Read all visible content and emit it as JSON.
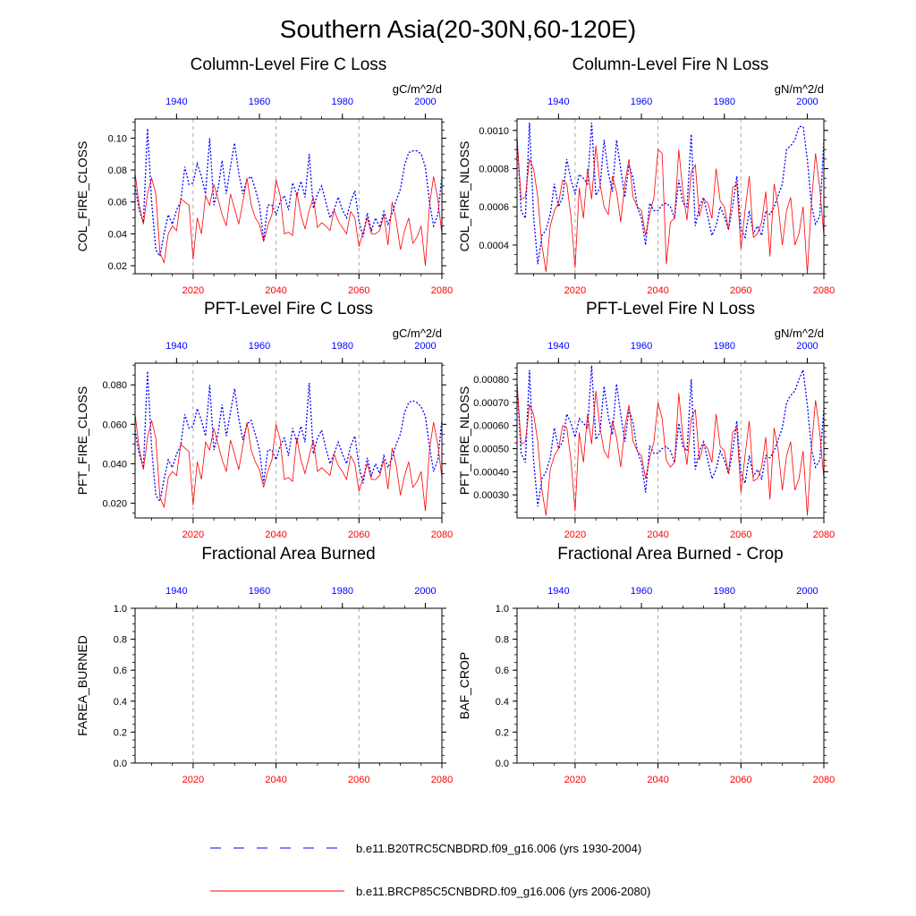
{
  "title": "Southern Asia(20-30N,60-120E)",
  "colors": {
    "series_a": "#0000ff",
    "series_b": "#ff0000",
    "grid": "#aaaaaa"
  },
  "legend": {
    "placement": "bottom-center",
    "items": [
      {
        "label": "b.e11.B20TRC5CNBDRD.f09_g16.006 (yrs 1930-2004)",
        "color": "#0000ff",
        "style": "dashed"
      },
      {
        "label": "b.e11.BRCP85C5CNBDRD.f09_g16.006 (yrs 2006-2080)",
        "color": "#ff0000",
        "style": "solid"
      }
    ]
  },
  "chart_data": [
    {
      "type": "line",
      "title": "Column-Level Fire C Loss",
      "units": "gC/m^2/d",
      "ylabel": "COL_FIRE_CLOSS",
      "ylim": [
        0.015,
        0.112
      ],
      "yticks": [
        "0.02",
        "0.04",
        "0.06",
        "0.08",
        "0.10"
      ],
      "ytick_values": [
        0.02,
        0.04,
        0.06,
        0.08,
        0.1
      ],
      "x_bottom": {
        "label": "",
        "range": [
          2006,
          2080
        ],
        "ticks": [
          2020,
          2040,
          2060,
          2080
        ]
      },
      "x_top": {
        "label": "",
        "range": [
          1930,
          2004
        ],
        "ticks": [
          1940,
          1960,
          1980,
          2000
        ]
      },
      "grid_x": [
        2020,
        2040,
        2060
      ],
      "series": [
        {
          "values": [
            0.07,
            0.055,
            0.047,
            0.106,
            0.06,
            0.03,
            0.026,
            0.04,
            0.052,
            0.046,
            0.055,
            0.06,
            0.082,
            0.071,
            0.072,
            0.084,
            0.076,
            0.065,
            0.1,
            0.058,
            0.068,
            0.086,
            0.065,
            0.082,
            0.097,
            0.078,
            0.065,
            0.074,
            0.076,
            0.068,
            0.058,
            0.036,
            0.058,
            0.058,
            0.052,
            0.06,
            0.064,
            0.055,
            0.072,
            0.064,
            0.073,
            0.063,
            0.09,
            0.056,
            0.065,
            0.07,
            0.06,
            0.05,
            0.055,
            0.063,
            0.055,
            0.05,
            0.06,
            0.067,
            0.048,
            0.038,
            0.053,
            0.042,
            0.05,
            0.044,
            0.054,
            0.046,
            0.053,
            0.061,
            0.068,
            0.083,
            0.091,
            0.092,
            0.092,
            0.09,
            0.082,
            0.06,
            0.045,
            0.052,
            0.076
          ]
        },
        {
          "values": [
            0.078,
            0.058,
            0.046,
            0.065,
            0.075,
            0.065,
            0.028,
            0.022,
            0.04,
            0.045,
            0.042,
            0.062,
            0.06,
            0.058,
            0.024,
            0.05,
            0.04,
            0.064,
            0.058,
            0.071,
            0.062,
            0.052,
            0.045,
            0.065,
            0.056,
            0.046,
            0.06,
            0.075,
            0.058,
            0.05,
            0.046,
            0.035,
            0.045,
            0.052,
            0.074,
            0.064,
            0.04,
            0.041,
            0.039,
            0.066,
            0.052,
            0.043,
            0.055,
            0.063,
            0.044,
            0.047,
            0.045,
            0.042,
            0.055,
            0.048,
            0.044,
            0.04,
            0.054,
            0.05,
            0.032,
            0.041,
            0.05,
            0.04,
            0.04,
            0.042,
            0.052,
            0.033,
            0.06,
            0.048,
            0.03,
            0.042,
            0.05,
            0.034,
            0.038,
            0.045,
            0.02,
            0.058,
            0.076,
            0.062,
            0.04
          ]
        }
      ]
    },
    {
      "type": "line",
      "title": "Column-Level Fire N Loss",
      "units": "gN/m^2/d",
      "ylabel": "COL_FIRE_NLOSS",
      "ylim": [
        0.00025,
        0.00106
      ],
      "yticks": [
        "0.0004",
        "0.0006",
        "0.0008",
        "0.0010"
      ],
      "ytick_values": [
        0.0004,
        0.0006,
        0.0008,
        0.001
      ],
      "x_bottom": {
        "label": "",
        "range": [
          2006,
          2080
        ],
        "ticks": [
          2020,
          2040,
          2060,
          2080
        ]
      },
      "x_top": {
        "label": "",
        "range": [
          1930,
          2004
        ],
        "ticks": [
          1940,
          1960,
          1980,
          2000
        ]
      },
      "grid_x": [
        2020,
        2040,
        2060
      ],
      "series": [
        {
          "values": [
            0.00096,
            0.00058,
            0.00054,
            0.00104,
            0.00055,
            0.0003,
            0.00045,
            0.00048,
            0.00056,
            0.00072,
            0.0006,
            0.00065,
            0.00085,
            0.00074,
            0.00067,
            0.00077,
            0.00075,
            0.00072,
            0.00104,
            0.00066,
            0.0007,
            0.00095,
            0.00078,
            0.00068,
            0.00095,
            0.0008,
            0.00065,
            0.00082,
            0.00075,
            0.0006,
            0.00054,
            0.0004,
            0.00062,
            0.00058,
            0.00058,
            0.00061,
            0.00062,
            0.0006,
            0.00054,
            0.00074,
            0.00062,
            0.0006,
            0.00098,
            0.0005,
            0.0006,
            0.00065,
            0.00055,
            0.00045,
            0.0005,
            0.0006,
            0.00055,
            0.00048,
            0.0006,
            0.00076,
            0.00048,
            0.00044,
            0.00058,
            0.00046,
            0.0005,
            0.00045,
            0.00058,
            0.00056,
            0.0006,
            0.00066,
            0.00072,
            0.0009,
            0.00092,
            0.00095,
            0.00102,
            0.00102,
            0.00085,
            0.00061,
            0.00051,
            0.00055,
            0.00095
          ]
        },
        {
          "values": [
            0.00096,
            0.00064,
            0.00065,
            0.00085,
            0.0008,
            0.00065,
            0.0004,
            0.00026,
            0.0005,
            0.00058,
            0.00062,
            0.00074,
            0.00072,
            0.00055,
            0.00028,
            0.0007,
            0.00054,
            0.0008,
            0.00064,
            0.00092,
            0.00072,
            0.0006,
            0.00056,
            0.00076,
            0.00068,
            0.00052,
            0.00072,
            0.00085,
            0.00065,
            0.0006,
            0.00058,
            0.00045,
            0.00056,
            0.00065,
            0.0009,
            0.00088,
            0.0003,
            0.00052,
            0.00054,
            0.0009,
            0.00068,
            0.00053,
            0.00078,
            0.00082,
            0.00055,
            0.00064,
            0.00062,
            0.00054,
            0.0008,
            0.00063,
            0.0006,
            0.00048,
            0.0007,
            0.00072,
            0.00038,
            0.00058,
            0.00076,
            0.00044,
            0.00046,
            0.00052,
            0.00068,
            0.00034,
            0.00072,
            0.0006,
            0.0004,
            0.00058,
            0.00065,
            0.0004,
            0.00046,
            0.0006,
            0.00025,
            0.00062,
            0.00088,
            0.0007,
            0.00045
          ]
        }
      ]
    },
    {
      "type": "line",
      "title": "PFT-Level Fire C Loss",
      "units": "gC/m^2/d",
      "ylabel": "PFT_FIRE_CLOSS",
      "ylim": [
        0.0125,
        0.091
      ],
      "yticks": [
        "0.020",
        "0.040",
        "0.060",
        "0.080"
      ],
      "ytick_values": [
        0.02,
        0.04,
        0.06,
        0.08
      ],
      "x_bottom": {
        "label": "",
        "range": [
          2006,
          2080
        ],
        "ticks": [
          2020,
          2040,
          2060,
          2080
        ]
      },
      "x_top": {
        "label": "",
        "range": [
          1930,
          2004
        ],
        "ticks": [
          1940,
          1960,
          1980,
          2000
        ]
      },
      "grid_x": [
        2020,
        2040,
        2060
      ],
      "series": [
        {
          "values": [
            0.057,
            0.045,
            0.038,
            0.087,
            0.048,
            0.024,
            0.021,
            0.032,
            0.042,
            0.038,
            0.045,
            0.049,
            0.065,
            0.058,
            0.059,
            0.068,
            0.062,
            0.054,
            0.08,
            0.047,
            0.055,
            0.07,
            0.054,
            0.066,
            0.078,
            0.063,
            0.052,
            0.06,
            0.062,
            0.055,
            0.047,
            0.03,
            0.047,
            0.047,
            0.042,
            0.049,
            0.053,
            0.044,
            0.058,
            0.051,
            0.059,
            0.051,
            0.081,
            0.045,
            0.053,
            0.057,
            0.048,
            0.04,
            0.045,
            0.051,
            0.045,
            0.04,
            0.049,
            0.054,
            0.039,
            0.03,
            0.043,
            0.034,
            0.04,
            0.035,
            0.044,
            0.038,
            0.043,
            0.05,
            0.055,
            0.066,
            0.071,
            0.072,
            0.071,
            0.069,
            0.064,
            0.049,
            0.036,
            0.042,
            0.062
          ]
        },
        {
          "values": [
            0.065,
            0.048,
            0.037,
            0.053,
            0.062,
            0.053,
            0.023,
            0.018,
            0.033,
            0.036,
            0.034,
            0.05,
            0.048,
            0.046,
            0.019,
            0.041,
            0.032,
            0.051,
            0.047,
            0.058,
            0.05,
            0.042,
            0.036,
            0.052,
            0.045,
            0.037,
            0.049,
            0.061,
            0.047,
            0.041,
            0.037,
            0.028,
            0.036,
            0.042,
            0.06,
            0.052,
            0.032,
            0.033,
            0.031,
            0.053,
            0.042,
            0.035,
            0.044,
            0.052,
            0.036,
            0.038,
            0.036,
            0.034,
            0.045,
            0.039,
            0.036,
            0.032,
            0.044,
            0.04,
            0.026,
            0.033,
            0.04,
            0.032,
            0.032,
            0.034,
            0.042,
            0.027,
            0.048,
            0.039,
            0.024,
            0.034,
            0.041,
            0.028,
            0.031,
            0.036,
            0.016,
            0.047,
            0.061,
            0.05,
            0.033
          ]
        }
      ]
    },
    {
      "type": "line",
      "title": "PFT-Level Fire N Loss",
      "units": "gN/m^2/d",
      "ylabel": "PFT_FIRE_NLOSS",
      "ylim": [
        0.0002,
        0.00087
      ],
      "yticks": [
        "0.00030",
        "0.00040",
        "0.00050",
        "0.00060",
        "0.00070",
        "0.00080"
      ],
      "ytick_values": [
        0.0003,
        0.0004,
        0.0005,
        0.0006,
        0.0007,
        0.0008
      ],
      "x_bottom": {
        "label": "",
        "range": [
          2006,
          2080
        ],
        "ticks": [
          2020,
          2040,
          2060,
          2080
        ]
      },
      "x_top": {
        "label": "",
        "range": [
          1930,
          2004
        ],
        "ticks": [
          1940,
          1960,
          1980,
          2000
        ]
      },
      "grid_x": [
        2020,
        2040,
        2060
      ],
      "series": [
        {
          "values": [
            0.00078,
            0.00048,
            0.00044,
            0.00084,
            0.00045,
            0.00025,
            0.00037,
            0.0004,
            0.00046,
            0.00059,
            0.0005,
            0.00053,
            0.00065,
            0.00061,
            0.00055,
            0.00063,
            0.00061,
            0.00059,
            0.00086,
            0.00054,
            0.00057,
            0.00077,
            0.00064,
            0.00056,
            0.00078,
            0.00065,
            0.00053,
            0.00067,
            0.00061,
            0.00049,
            0.00044,
            0.00031,
            0.00051,
            0.00048,
            0.00048,
            0.0005,
            0.00051,
            0.00049,
            0.00044,
            0.00061,
            0.00051,
            0.00049,
            0.0008,
            0.00041,
            0.00049,
            0.00053,
            0.00045,
            0.00037,
            0.00041,
            0.00049,
            0.00045,
            0.00039,
            0.00049,
            0.00062,
            0.00039,
            0.00035,
            0.00047,
            0.00038,
            0.00041,
            0.00037,
            0.00047,
            0.00046,
            0.00049,
            0.00054,
            0.00059,
            0.0007,
            0.00073,
            0.00075,
            0.0008,
            0.00084,
            0.00069,
            0.0005,
            0.00042,
            0.00045,
            0.00067
          ]
        },
        {
          "values": [
            0.00078,
            0.00052,
            0.00053,
            0.00069,
            0.00065,
            0.00053,
            0.00032,
            0.00021,
            0.00041,
            0.00047,
            0.0005,
            0.0006,
            0.00059,
            0.00045,
            0.00023,
            0.00057,
            0.00044,
            0.00065,
            0.00052,
            0.00075,
            0.00059,
            0.00049,
            0.00046,
            0.00062,
            0.00055,
            0.00042,
            0.00059,
            0.00069,
            0.00053,
            0.00049,
            0.00047,
            0.00037,
            0.00046,
            0.00053,
            0.0007,
            0.00063,
            0.00045,
            0.00042,
            0.00044,
            0.00074,
            0.00055,
            0.00043,
            0.00063,
            0.00067,
            0.00045,
            0.00052,
            0.0005,
            0.00044,
            0.00065,
            0.00051,
            0.00049,
            0.00039,
            0.00057,
            0.00059,
            0.00031,
            0.00047,
            0.00062,
            0.00036,
            0.00037,
            0.00042,
            0.00055,
            0.00028,
            0.00059,
            0.00049,
            0.00032,
            0.00047,
            0.00053,
            0.00032,
            0.00037,
            0.00049,
            0.00021,
            0.0005,
            0.00071,
            0.00057,
            0.00037
          ]
        }
      ]
    },
    {
      "type": "line",
      "title": "Fractional Area Burned",
      "units": "",
      "ylabel": "FAREA_BURNED",
      "ylim": [
        0,
        1
      ],
      "yticks": [
        "0.0",
        "0.2",
        "0.4",
        "0.6",
        "0.8",
        "1.0"
      ],
      "ytick_values": [
        0,
        0.2,
        0.4,
        0.6,
        0.8,
        1.0
      ],
      "x_bottom": {
        "label": "",
        "range": [
          2006,
          2080
        ],
        "ticks": [
          2020,
          2040,
          2060,
          2080
        ]
      },
      "x_top": {
        "label": "",
        "range": [
          1930,
          2004
        ],
        "ticks": [
          1940,
          1960,
          1980,
          2000
        ]
      },
      "grid_x": [
        2020,
        2040,
        2060
      ],
      "series": []
    },
    {
      "type": "line",
      "title": "Fractional Area Burned - Crop",
      "units": "",
      "ylabel": "BAF_CROP",
      "ylim": [
        0,
        1
      ],
      "yticks": [
        "0.0",
        "0.2",
        "0.4",
        "0.6",
        "0.8",
        "1.0"
      ],
      "ytick_values": [
        0,
        0.2,
        0.4,
        0.6,
        0.8,
        1.0
      ],
      "x_bottom": {
        "label": "",
        "range": [
          2006,
          2080
        ],
        "ticks": [
          2020,
          2040,
          2060,
          2080
        ]
      },
      "x_top": {
        "label": "",
        "range": [
          1930,
          2004
        ],
        "ticks": [
          1940,
          1960,
          1980,
          2000
        ]
      },
      "grid_x": [
        2020,
        2040,
        2060
      ],
      "series": []
    }
  ]
}
